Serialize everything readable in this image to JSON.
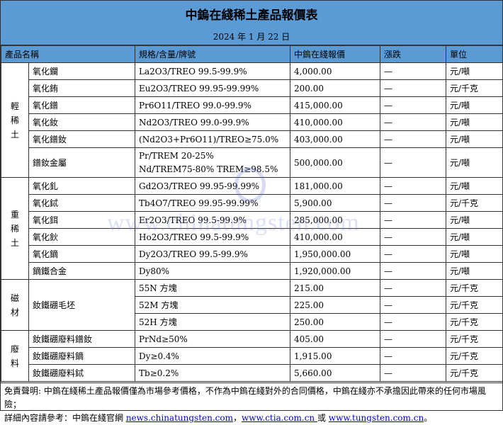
{
  "title": "中鎢在綫稀土產品報價表",
  "date": "2024 年 1 月 22 日",
  "headers": [
    "產品名稱",
    "規格/含量/牌號",
    "中鎢在綫報價",
    "漲跌",
    "單位"
  ],
  "groups": [
    {
      "category": "輕稀土",
      "rows": [
        {
          "name": "氧化鑭",
          "spec": "La2O3/TREO 99.5-99.9%",
          "price": "4,000.00",
          "change": "—",
          "unit": "元/噸"
        },
        {
          "name": "氧化銪",
          "spec": "Eu2O3/TREO 99.95-99.99%",
          "price": "200.00",
          "change": "—",
          "unit": "元/千克"
        },
        {
          "name": "氧化鐠",
          "spec": "Pr6O11/TREO 99.0-99.9%",
          "price": "415,000.00",
          "change": "—",
          "unit": "元/噸"
        },
        {
          "name": "氧化釹",
          "spec": "Nd2O3/TREO 99.0-99.9%",
          "price": "410,000.00",
          "change": "—",
          "unit": "元/噸"
        },
        {
          "name": "氧化鐠釹",
          "spec": "(Nd2O3+Pr6O11)/TREO≥75.0%",
          "price": "403,000.00",
          "change": "—",
          "unit": "元/噸"
        },
        {
          "name": "鐠釹金屬",
          "spec": "Pr/TREM 20-25%",
          "spec2": "Nd/TREM75-80% TREM≥98.5%",
          "price": "500,000.00",
          "change": "—",
          "unit": "元/噸"
        }
      ]
    },
    {
      "category": "重稀土",
      "rows": [
        {
          "name": "氧化釓",
          "spec": "Gd2O3/TREO 99.95-99.99%",
          "price": "181,000.00",
          "change": "—",
          "unit": "元/噸"
        },
        {
          "name": "氧化鋱",
          "spec": "Tb4O7/TREO 99.95-99.99%",
          "price": "5,900.00",
          "change": "—",
          "unit": "元/千克"
        },
        {
          "name": "氧化鉺",
          "spec": "Er2O3/TREO 99.5-99.9%",
          "price": "285,000.00",
          "change": "—",
          "unit": "元/噸"
        },
        {
          "name": "氧化鈥",
          "spec": "Ho2O3/TREO 99.5-99.9%",
          "price": "410,000.00",
          "change": "—",
          "unit": "元/噸"
        },
        {
          "name": "氧化鏑",
          "spec": "Dy2O3/TREO 99.5-99.9%",
          "price": "1,950,000.00",
          "change": "—",
          "unit": "元/噸"
        },
        {
          "name": "鏑鐵合金",
          "spec": "Dy80%",
          "price": "1,920,000.00",
          "change": "—",
          "unit": "元/噸"
        }
      ]
    },
    {
      "category": "磁材",
      "name": "釹鐵硼毛坯",
      "rows": [
        {
          "spec": "55N 方塊",
          "price": "215.00",
          "change": "—",
          "unit": "元/千克"
        },
        {
          "spec": "52M 方塊",
          "price": "225.00",
          "change": "—",
          "unit": "元/千克"
        },
        {
          "spec": "52H 方塊",
          "price": "250.00",
          "change": "—",
          "unit": "元/千克"
        }
      ]
    },
    {
      "category": "廢料",
      "rows": [
        {
          "name": "釹鐵硼廢料鐠釹",
          "spec": "PrNd≥50%",
          "price": "405.00",
          "change": "—",
          "unit": "元/千克"
        },
        {
          "name": "釹鐵硼廢料鏑",
          "spec": "Dy≥0.4%",
          "price": "1,915.00",
          "change": "—",
          "unit": "元/千克"
        },
        {
          "name": "釹鐵硼廢料鋱",
          "spec": "Tb≥0.2%",
          "price": "5,660.00",
          "change": "—",
          "unit": "元/千克"
        }
      ]
    }
  ],
  "footer": {
    "disclaimer": "免責聲明: 中鎢在綫稀土產品報價僅為市場參考價格，不作為中鎢在綫對外的合同價格，中鎢在綫亦不承擔因此帶來的任何市場風險；",
    "ref_prefix": "詳細內容請參考：中鎢在綫官網 ",
    "link1": "news.chinatungsten.com",
    "sep1": "，",
    "link2": "www.ctia.com.cn ",
    "sep2": "或 ",
    "link3": "www.tungsten.com.cn",
    "end": "。"
  },
  "watermark": "www.chinatungsten.com"
}
